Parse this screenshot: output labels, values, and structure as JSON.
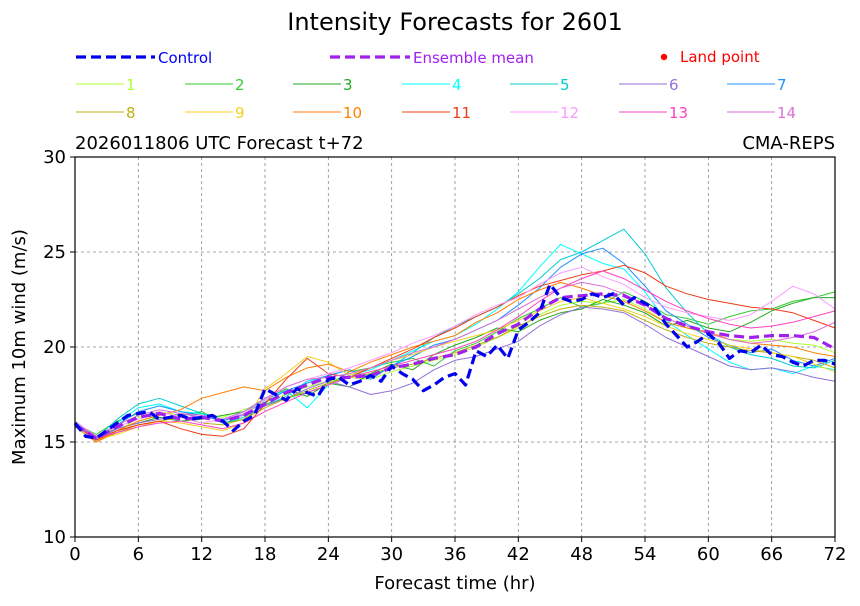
{
  "chart_data": {
    "type": "line",
    "title": "Intensity Forecasts for 2601",
    "subtitle_left": "2026011806 UTC Forecast t+72",
    "subtitle_right": "CMA-REPS",
    "xlabel": "Forecast time (hr)",
    "ylabel": "Maximum 10m wind (m/s)",
    "xlim": [
      0,
      72
    ],
    "ylim": [
      10,
      30
    ],
    "xticks": [
      0,
      6,
      12,
      18,
      24,
      30,
      36,
      42,
      48,
      54,
      60,
      66,
      72
    ],
    "yticks": [
      10,
      15,
      20,
      25,
      30
    ],
    "grid": true,
    "legend_main": [
      {
        "label": "Control",
        "color": "#0000ee",
        "style": "dashed"
      },
      {
        "label": "Ensemble mean",
        "color": "#a020f0",
        "style": "dashed"
      },
      {
        "label": "Land point",
        "color": "#ff0000",
        "style": "dot"
      }
    ],
    "control": {
      "name": "Control",
      "color": "#0000ee",
      "x": [
        0,
        1,
        2,
        3,
        4,
        5,
        6,
        7,
        8,
        9,
        10,
        11,
        12,
        13,
        14,
        15,
        16,
        17,
        18,
        19,
        20,
        21,
        22,
        23,
        24,
        25,
        26,
        27,
        28,
        29,
        30,
        31,
        32,
        33,
        34,
        35,
        36,
        37,
        38,
        39,
        40,
        41,
        42,
        43,
        44,
        45,
        46,
        47,
        48,
        49,
        50,
        51,
        52,
        53,
        54,
        55,
        56,
        57,
        58,
        59,
        60,
        61,
        62,
        63,
        64,
        65,
        66,
        67,
        68,
        69,
        70,
        71,
        72
      ],
      "values": [
        16.0,
        15.3,
        15.2,
        15.6,
        16.0,
        16.4,
        16.5,
        16.6,
        16.2,
        16.3,
        16.4,
        16.2,
        16.3,
        16.4,
        16.1,
        15.6,
        16.1,
        16.4,
        17.8,
        17.5,
        17.2,
        17.8,
        17.6,
        17.4,
        18.3,
        18.4,
        18.0,
        18.2,
        18.5,
        18.2,
        19.0,
        18.6,
        18.3,
        17.7,
        18.0,
        18.4,
        18.6,
        18.0,
        19.8,
        19.5,
        20.1,
        19.4,
        20.9,
        21.3,
        21.8,
        23.3,
        22.6,
        22.4,
        22.5,
        22.8,
        22.6,
        22.8,
        22.2,
        22.6,
        22.3,
        22.0,
        21.2,
        20.6,
        20.0,
        20.3,
        20.7,
        20.2,
        19.4,
        19.8,
        19.7,
        20.1,
        19.6,
        19.5,
        19.2,
        19.0,
        19.3,
        19.3,
        19.1
      ]
    },
    "ensemble_mean": {
      "name": "Ensemble mean",
      "color": "#a020f0",
      "x": [
        0,
        2,
        4,
        6,
        8,
        10,
        12,
        14,
        16,
        18,
        20,
        22,
        24,
        26,
        28,
        30,
        32,
        34,
        36,
        38,
        40,
        42,
        44,
        46,
        48,
        50,
        52,
        54,
        56,
        58,
        60,
        62,
        64,
        66,
        68,
        70,
        72
      ],
      "values": [
        15.9,
        15.2,
        15.8,
        16.3,
        16.5,
        16.2,
        16.3,
        16.1,
        16.4,
        17.0,
        17.6,
        18.0,
        18.4,
        18.4,
        18.5,
        18.9,
        19.1,
        19.4,
        19.6,
        20.0,
        20.7,
        21.2,
        22.0,
        22.6,
        22.7,
        22.8,
        22.7,
        22.2,
        21.5,
        21.1,
        20.8,
        20.6,
        20.5,
        20.6,
        20.6,
        20.5,
        19.9
      ]
    },
    "members": [
      {
        "name": "1",
        "color": "#adff2f",
        "values": [
          15.9,
          15.2,
          15.5,
          16.3,
          16.6,
          16.4,
          16.5,
          16.3,
          16.7,
          17.1,
          17.5,
          17.9,
          18.2,
          18.4,
          18.3,
          18.7,
          19.0,
          19.3,
          19.6,
          20.0,
          20.5,
          21.0,
          21.7,
          22.2,
          22.4,
          22.3,
          22.5,
          22.0,
          21.3,
          21.0,
          20.7,
          20.4,
          20.3,
          20.4,
          20.2,
          20.1,
          19.7
        ]
      },
      {
        "name": "2",
        "color": "#32cd32",
        "values": [
          16.0,
          15.4,
          16.1,
          16.5,
          16.2,
          16.4,
          16.6,
          16.0,
          16.2,
          17.0,
          17.3,
          17.6,
          18.0,
          18.7,
          18.9,
          19.2,
          19.4,
          19.0,
          19.8,
          20.2,
          20.8,
          21.5,
          22.0,
          22.6,
          22.1,
          22.3,
          22.9,
          22.4,
          21.7,
          21.5,
          21.2,
          21.6,
          21.9,
          22.0,
          22.4,
          22.6,
          22.9
        ]
      },
      {
        "name": "3",
        "color": "#22aa22",
        "values": [
          15.8,
          15.3,
          15.7,
          16.0,
          16.3,
          16.1,
          16.2,
          16.4,
          16.6,
          17.2,
          17.8,
          17.4,
          18.1,
          17.9,
          18.6,
          19.1,
          18.8,
          19.6,
          20.1,
          20.5,
          21.0,
          20.8,
          21.4,
          21.8,
          22.0,
          22.5,
          22.2,
          21.8,
          21.1,
          21.4,
          21.0,
          20.8,
          21.3,
          21.9,
          22.3,
          22.6,
          22.6
        ]
      },
      {
        "name": "4",
        "color": "#00ffff",
        "values": [
          16.0,
          15.1,
          16.0,
          16.8,
          17.0,
          16.6,
          16.5,
          16.2,
          16.6,
          17.3,
          17.7,
          16.8,
          18.0,
          18.5,
          18.8,
          19.3,
          19.8,
          20.3,
          20.6,
          21.2,
          22.0,
          22.9,
          24.2,
          25.4,
          24.9,
          24.4,
          24.1,
          22.9,
          21.4,
          20.6,
          19.9,
          19.2,
          18.8,
          18.9,
          18.6,
          19.0,
          18.8
        ]
      },
      {
        "name": "5",
        "color": "#00ced1",
        "values": [
          16.1,
          15.2,
          16.2,
          17.0,
          17.3,
          16.9,
          16.5,
          16.0,
          16.3,
          16.9,
          17.4,
          18.2,
          18.5,
          18.8,
          18.4,
          19.0,
          19.7,
          20.5,
          21.1,
          21.6,
          22.1,
          22.8,
          23.6,
          24.6,
          25.0,
          25.6,
          26.2,
          24.9,
          23.1,
          21.8,
          20.7,
          20.0,
          19.6,
          19.4,
          19.0,
          18.9,
          19.3
        ]
      },
      {
        "name": "6",
        "color": "#9370db",
        "values": [
          15.9,
          15.1,
          15.7,
          16.0,
          16.2,
          16.5,
          16.3,
          16.2,
          16.4,
          16.9,
          17.3,
          17.8,
          18.2,
          17.9,
          17.5,
          17.7,
          18.1,
          18.8,
          19.3,
          19.5,
          19.9,
          20.3,
          21.1,
          21.7,
          22.1,
          22.0,
          21.8,
          21.2,
          20.5,
          20.0,
          19.5,
          19.0,
          18.8,
          18.9,
          18.7,
          18.4,
          18.2
        ]
      },
      {
        "name": "7",
        "color": "#1e90ff",
        "values": [
          16.0,
          15.2,
          15.9,
          16.6,
          16.9,
          16.6,
          16.4,
          16.1,
          16.5,
          17.1,
          17.7,
          18.1,
          18.5,
          18.8,
          18.3,
          19.0,
          19.5,
          20.1,
          20.4,
          20.9,
          21.4,
          22.2,
          23.1,
          24.2,
          24.9,
          25.2,
          24.4,
          23.2,
          21.9,
          21.2,
          20.5,
          20.1,
          19.7,
          19.9,
          19.3,
          19.0,
          19.4
        ]
      },
      {
        "name": "8",
        "color": "#bdb010",
        "values": [
          15.8,
          15.0,
          15.5,
          15.9,
          16.1,
          16.3,
          16.0,
          15.9,
          16.2,
          16.8,
          17.3,
          17.7,
          18.1,
          18.4,
          18.6,
          18.9,
          19.1,
          19.4,
          19.7,
          20.1,
          20.5,
          21.1,
          21.6,
          22.0,
          22.2,
          22.1,
          21.9,
          21.4,
          20.9,
          20.5,
          20.2,
          20.0,
          19.8,
          19.7,
          19.5,
          19.3,
          18.9
        ]
      },
      {
        "name": "9",
        "color": "#f5d020",
        "values": [
          15.9,
          15.1,
          15.4,
          15.8,
          16.1,
          16.0,
          15.8,
          15.6,
          16.0,
          17.8,
          18.6,
          19.5,
          19.2,
          18.5,
          18.9,
          19.3,
          19.6,
          20.0,
          20.3,
          20.6,
          20.9,
          21.4,
          21.9,
          22.4,
          22.6,
          22.3,
          22.0,
          21.6,
          21.1,
          20.7,
          20.4,
          20.1,
          19.9,
          19.7,
          19.5,
          19.1,
          18.7
        ]
      },
      {
        "name": "10",
        "color": "#ff7f00",
        "values": [
          16.0,
          15.0,
          15.6,
          16.1,
          16.4,
          16.7,
          17.3,
          17.6,
          17.9,
          17.7,
          18.4,
          18.9,
          19.1,
          18.7,
          19.2,
          19.6,
          20.0,
          20.3,
          20.6,
          21.3,
          21.8,
          22.5,
          23.0,
          23.4,
          23.1,
          22.7,
          22.4,
          21.9,
          21.3,
          21.0,
          20.8,
          20.4,
          20.2,
          20.1,
          20.0,
          19.7,
          19.5
        ]
      },
      {
        "name": "11",
        "color": "#ee3b17",
        "values": [
          15.9,
          15.1,
          15.6,
          15.9,
          16.1,
          15.7,
          15.4,
          15.3,
          15.7,
          17.0,
          18.3,
          19.4,
          18.6,
          18.4,
          18.9,
          19.4,
          19.9,
          20.5,
          21.0,
          21.6,
          22.1,
          22.7,
          23.2,
          23.5,
          23.8,
          24.0,
          24.3,
          23.9,
          23.2,
          22.8,
          22.5,
          22.3,
          22.1,
          22.0,
          21.8,
          21.4,
          21.0
        ]
      },
      {
        "name": "12",
        "color": "#ff99ff",
        "values": [
          16.1,
          15.3,
          15.8,
          16.2,
          16.6,
          16.3,
          16.0,
          16.2,
          16.5,
          17.2,
          17.9,
          18.3,
          18.6,
          18.9,
          19.3,
          19.7,
          20.2,
          20.6,
          21.1,
          21.7,
          22.2,
          22.6,
          23.3,
          23.9,
          24.2,
          23.7,
          23.3,
          22.6,
          22.1,
          21.8,
          21.6,
          21.4,
          21.7,
          22.4,
          23.2,
          22.8,
          22.0
        ]
      },
      {
        "name": "13",
        "color": "#ff40c0",
        "values": [
          15.9,
          15.2,
          15.5,
          15.8,
          16.0,
          16.1,
          15.9,
          15.7,
          16.0,
          16.6,
          17.1,
          17.6,
          18.0,
          18.4,
          18.7,
          19.0,
          19.3,
          19.6,
          19.9,
          20.3,
          20.9,
          21.6,
          22.4,
          23.1,
          23.6,
          24.0,
          23.6,
          23.0,
          22.4,
          21.9,
          21.5,
          21.2,
          21.0,
          21.1,
          21.3,
          21.6,
          21.9
        ]
      },
      {
        "name": "14",
        "color": "#da70d6",
        "values": [
          16.0,
          15.3,
          15.9,
          16.4,
          16.7,
          16.5,
          16.4,
          16.2,
          16.6,
          17.3,
          17.9,
          18.3,
          18.4,
          18.6,
          18.9,
          19.3,
          19.7,
          20.0,
          20.4,
          20.9,
          21.4,
          22.0,
          22.6,
          23.1,
          23.4,
          23.2,
          22.8,
          22.2,
          21.5,
          21.1,
          20.7,
          20.4,
          20.2,
          20.3,
          20.5,
          20.8,
          21.3
        ]
      }
    ]
  }
}
